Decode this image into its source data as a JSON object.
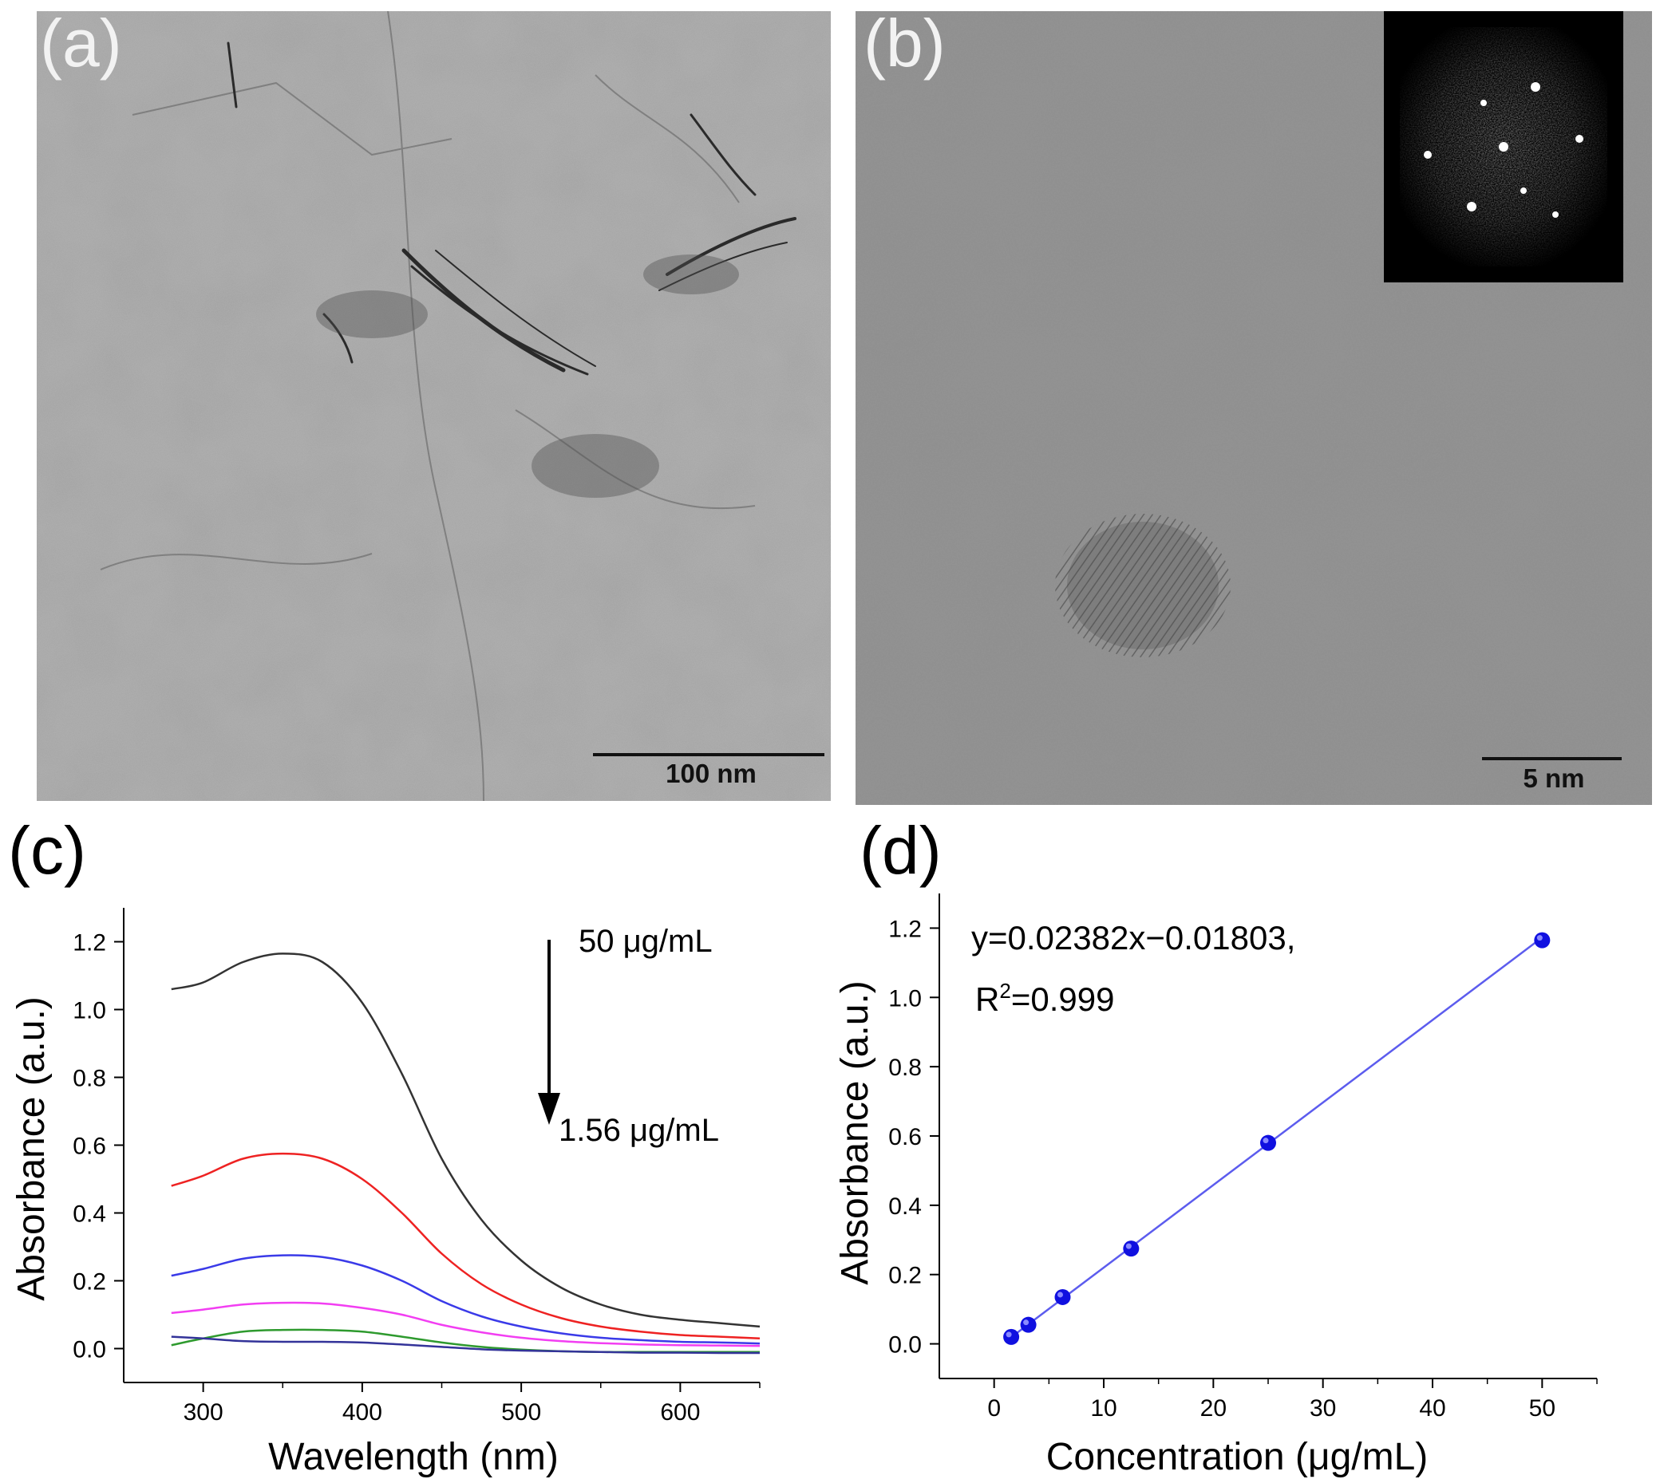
{
  "panels": {
    "a": {
      "letter": "(a)",
      "scale_bar": "100 nm"
    },
    "b": {
      "letter": "(b)",
      "scale_bar": "5 nm"
    }
  },
  "colors": {
    "black": "#333333",
    "red": "#ee2222",
    "blue": "#3a3ae8",
    "magenta": "#f23ef2",
    "green": "#2e9a2e",
    "navy": "#333399",
    "fit_line": "#5c5cee",
    "points": "#1010e0"
  },
  "chart_data": [
    {
      "id": "c",
      "panel_letter": "(c)",
      "type": "line",
      "xlabel": "Wavelength (nm)",
      "ylabel": "Absorbance (a.u.)",
      "xlim": [
        250,
        650
      ],
      "ylim": [
        -0.1,
        1.3
      ],
      "xticks": [
        300,
        400,
        500,
        600
      ],
      "yticks": [
        0.0,
        0.2,
        0.4,
        0.6,
        0.8,
        1.0,
        1.2
      ],
      "grid": false,
      "annotations": {
        "top": "50 μg/mL",
        "bottom": "1.56 μg/mL",
        "arrow": "down"
      },
      "series": [
        {
          "color": "black",
          "x": [
            280,
            300,
            325,
            350,
            375,
            400,
            425,
            450,
            475,
            500,
            525,
            550,
            575,
            600,
            625,
            650
          ],
          "values": [
            1.06,
            1.08,
            1.14,
            1.165,
            1.14,
            1.02,
            0.81,
            0.56,
            0.38,
            0.26,
            0.18,
            0.13,
            0.1,
            0.085,
            0.075,
            0.065
          ]
        },
        {
          "color": "red",
          "x": [
            280,
            300,
            325,
            350,
            375,
            400,
            425,
            450,
            475,
            500,
            525,
            550,
            575,
            600,
            625,
            650
          ],
          "values": [
            0.48,
            0.51,
            0.56,
            0.575,
            0.56,
            0.5,
            0.4,
            0.28,
            0.19,
            0.13,
            0.09,
            0.065,
            0.05,
            0.04,
            0.035,
            0.03
          ]
        },
        {
          "color": "blue",
          "x": [
            280,
            300,
            325,
            350,
            375,
            400,
            425,
            450,
            475,
            500,
            525,
            550,
            575,
            600,
            625,
            650
          ],
          "values": [
            0.215,
            0.235,
            0.265,
            0.275,
            0.27,
            0.245,
            0.2,
            0.14,
            0.095,
            0.065,
            0.045,
            0.032,
            0.025,
            0.02,
            0.018,
            0.015
          ]
        },
        {
          "color": "magenta",
          "x": [
            280,
            300,
            325,
            350,
            375,
            400,
            425,
            450,
            475,
            500,
            525,
            550,
            575,
            600,
            625,
            650
          ],
          "values": [
            0.105,
            0.115,
            0.13,
            0.135,
            0.133,
            0.12,
            0.1,
            0.07,
            0.048,
            0.032,
            0.022,
            0.016,
            0.012,
            0.01,
            0.009,
            0.008
          ]
        },
        {
          "color": "green",
          "x": [
            280,
            300,
            325,
            350,
            375,
            400,
            425,
            450,
            475,
            500,
            525,
            550,
            575,
            600,
            625,
            650
          ],
          "values": [
            0.01,
            0.03,
            0.05,
            0.055,
            0.055,
            0.05,
            0.035,
            0.018,
            0.005,
            -0.003,
            -0.008,
            -0.01,
            -0.01,
            -0.01,
            -0.01,
            -0.01
          ]
        },
        {
          "color": "navy",
          "x": [
            280,
            300,
            325,
            350,
            375,
            400,
            425,
            450,
            475,
            500,
            525,
            550,
            575,
            600,
            625,
            650
          ],
          "values": [
            0.035,
            0.03,
            0.022,
            0.02,
            0.02,
            0.018,
            0.012,
            0.005,
            -0.002,
            -0.006,
            -0.008,
            -0.01,
            -0.012,
            -0.012,
            -0.013,
            -0.013
          ]
        }
      ]
    },
    {
      "id": "d",
      "panel_letter": "(d)",
      "type": "scatter",
      "xlabel": "Concentration (μg/mL)",
      "ylabel": "Absorbance (a.u.)",
      "xlim": [
        -5,
        55
      ],
      "ylim": [
        -0.1,
        1.3
      ],
      "xticks": [
        0,
        10,
        20,
        30,
        40,
        50
      ],
      "yticks": [
        0.0,
        0.2,
        0.4,
        0.6,
        0.8,
        1.0,
        1.2
      ],
      "grid": false,
      "equation": "y=0.02382x−0.01803,",
      "r2_label": "R",
      "r2_sup": "2",
      "r2_value": "=0.999",
      "fit": {
        "slope": 0.02382,
        "intercept": -0.01803,
        "x_range": [
          1.56,
          50
        ]
      },
      "x": [
        1.56,
        3.125,
        6.25,
        12.5,
        25,
        50
      ],
      "values": [
        0.02,
        0.055,
        0.135,
        0.275,
        0.58,
        1.165
      ]
    }
  ]
}
